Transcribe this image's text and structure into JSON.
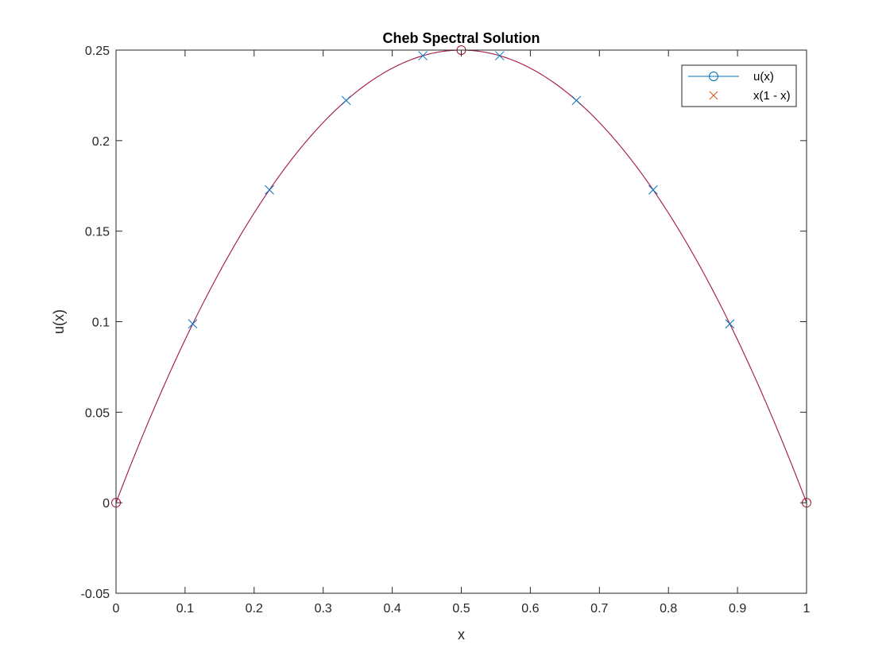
{
  "chart_data": {
    "type": "line",
    "title": "Cheb Spectral Solution",
    "xlabel": "x",
    "ylabel": "u(x)",
    "xlim": [
      0,
      1
    ],
    "ylim": [
      -0.05,
      0.25
    ],
    "xticks": [
      0,
      0.1,
      0.2,
      0.3,
      0.4,
      0.5,
      0.6,
      0.7,
      0.8,
      0.9,
      1
    ],
    "xtick_labels": [
      "0",
      "0.1",
      "0.2",
      "0.3",
      "0.4",
      "0.5",
      "0.6",
      "0.7",
      "0.8",
      "0.9",
      "1"
    ],
    "yticks": [
      -0.05,
      0,
      0.05,
      0.1,
      0.15,
      0.2,
      0.25
    ],
    "ytick_labels": [
      "-0.05",
      "0",
      "0.05",
      "0.1",
      "0.15",
      "0.2",
      "0.25"
    ],
    "grid": false,
    "legend_position": "top-right",
    "series": [
      {
        "name": "u(x)",
        "color": "#0072BD",
        "marker": "circle",
        "x": [
          0,
          0.5,
          1
        ],
        "y": [
          0,
          0.25,
          0
        ]
      },
      {
        "name": "x(1 - x)",
        "color": "#D95319",
        "marker": "x",
        "x": [
          0.1111,
          0.2222,
          0.3333,
          0.4444,
          0.5556,
          0.6667,
          0.7778,
          0.8889
        ],
        "y": [
          0.0988,
          0.1728,
          0.2222,
          0.2469,
          0.2469,
          0.2222,
          0.1728,
          0.0988
        ]
      }
    ],
    "curves": [
      {
        "color": "#0072BD",
        "function": "x(1 - x)"
      },
      {
        "color": "#C0143C",
        "function": "x(1 - x)"
      }
    ]
  }
}
